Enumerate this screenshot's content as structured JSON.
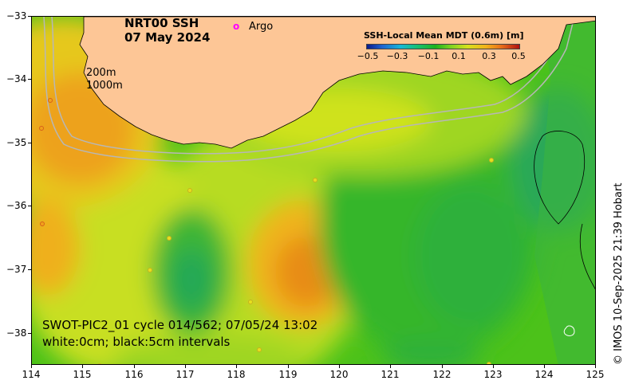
{
  "title": {
    "line1": "NRT00 SSH",
    "line2": "07 May 2024"
  },
  "legend": {
    "argo_symbol": "o",
    "argo_label": "Argo"
  },
  "contour_labels": {
    "shallow": "200m",
    "deep": "1000m"
  },
  "colorbar": {
    "title": "SSH-Local Mean MDT (0.6m) [m]",
    "ticks": [
      "−0.5",
      "−0.3",
      "−0.1",
      "0.1",
      "0.3",
      "0.5"
    ]
  },
  "axes": {
    "y_ticks": [
      "−33",
      "−34",
      "−35",
      "−36",
      "−37",
      "−38"
    ],
    "x_ticks": [
      "114",
      "115",
      "116",
      "117",
      "118",
      "119",
      "120",
      "121",
      "122",
      "123",
      "124",
      "125"
    ]
  },
  "annotation": {
    "line1": "SWOT-PIC2_01 cycle 014/562; 07/05/24 13:02",
    "line2": "white:0cm; black:5cm intervals"
  },
  "credit": "© IMOS 10-Sep-2025 21:39 Hobart",
  "colors": {
    "land": "#fdc696",
    "ocean_base": "#4cc21a",
    "argo": "#ff00ff"
  }
}
